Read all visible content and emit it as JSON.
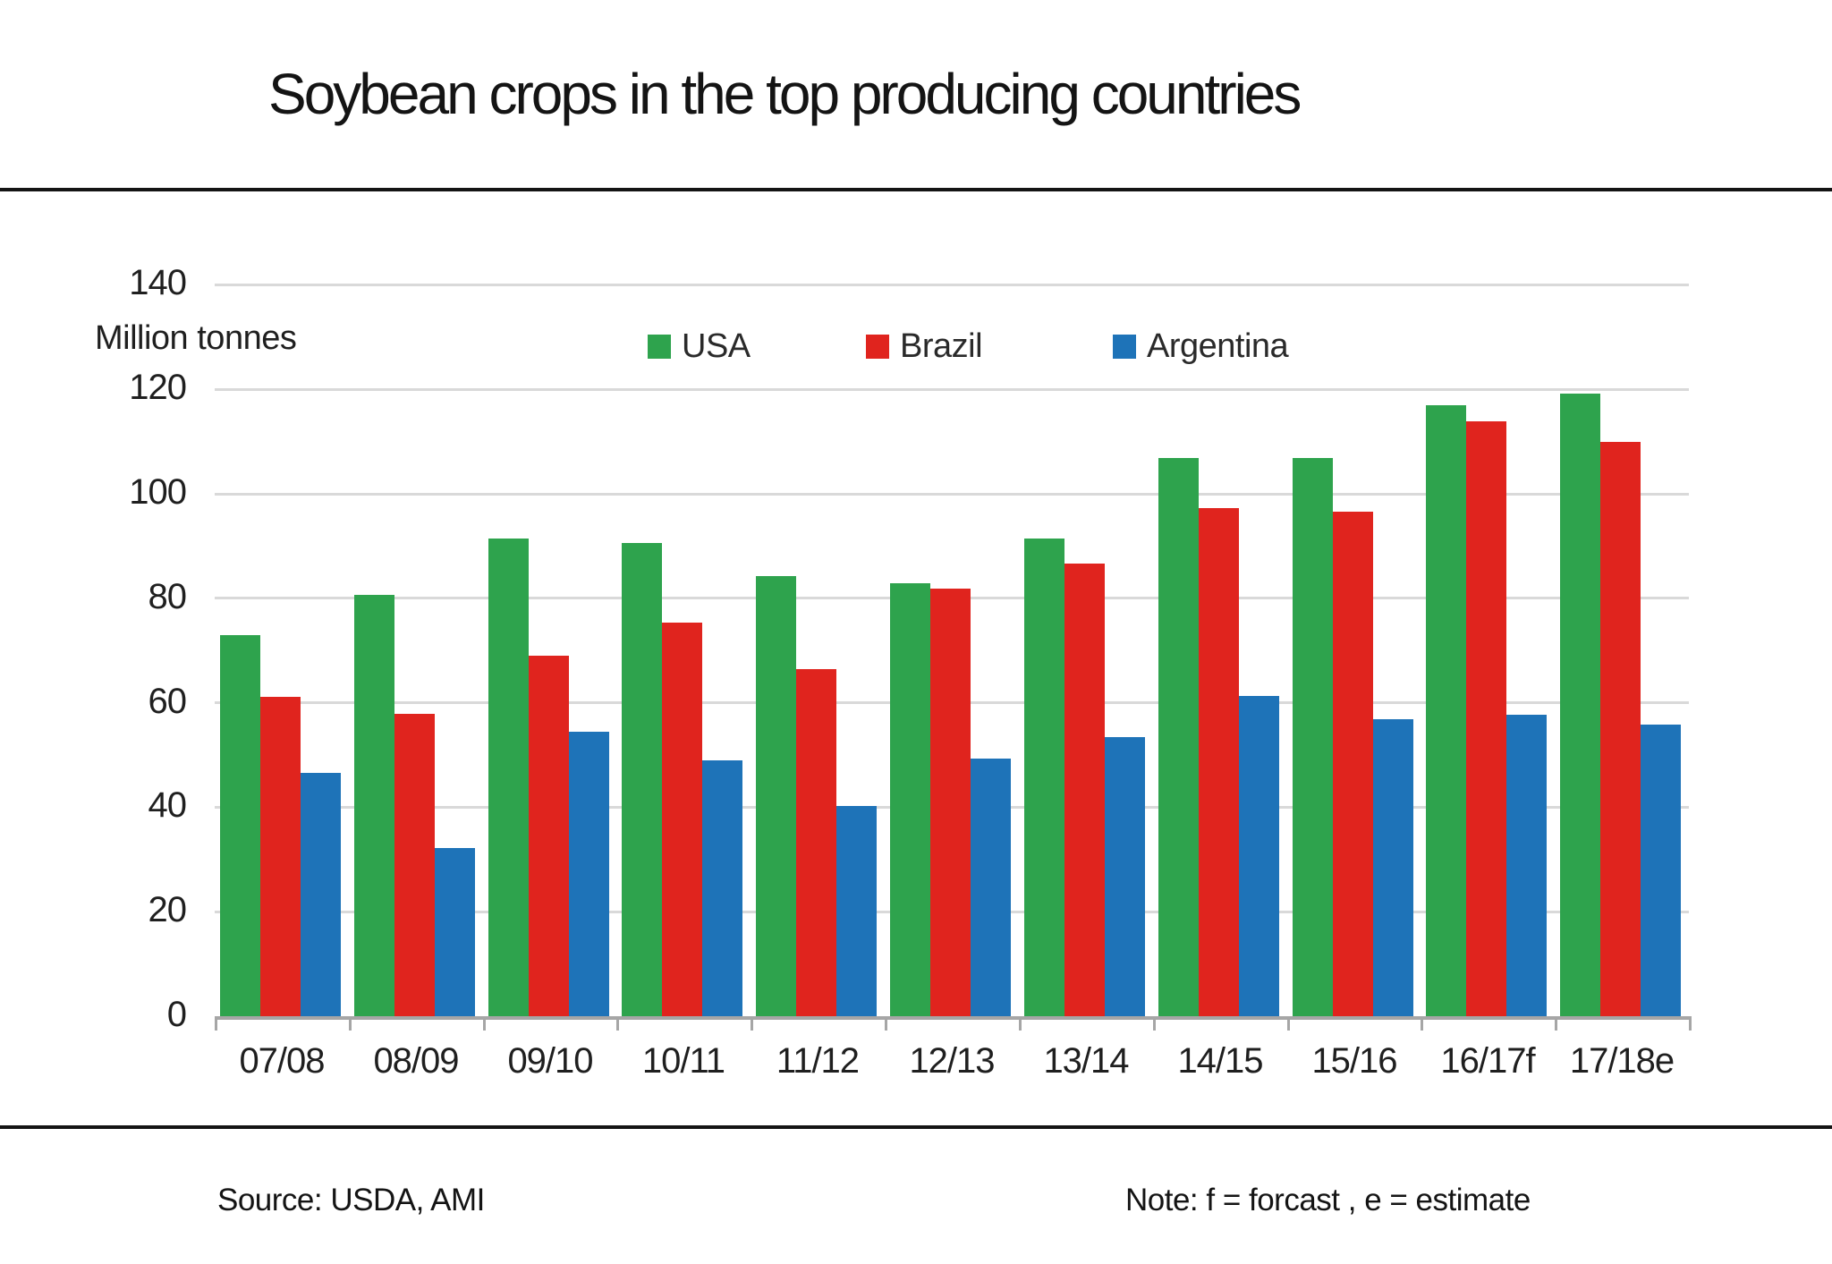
{
  "title": "Soybean crops in the top producing countries",
  "y_axis_label": "Million tonnes",
  "legend": {
    "items": [
      {
        "label": "USA",
        "color": "#2EA34D"
      },
      {
        "label": "Brazil",
        "color": "#E0241E"
      },
      {
        "label": "Argentina",
        "color": "#1E73B8"
      }
    ]
  },
  "chart_data": {
    "type": "bar",
    "title": "Soybean crops in the top producing countries",
    "ylabel": "Million tonnes",
    "categories": [
      "07/08",
      "08/09",
      "09/10",
      "10/11",
      "11/12",
      "12/13",
      "13/14",
      "14/15",
      "15/16",
      "16/17f",
      "17/18e"
    ],
    "series": [
      {
        "name": "USA",
        "color": "#2EA34D",
        "values": [
          73.0,
          80.7,
          91.4,
          90.6,
          84.3,
          82.8,
          91.4,
          106.9,
          106.9,
          116.9,
          119.2
        ]
      },
      {
        "name": "Brazil",
        "color": "#E0241E",
        "values": [
          61.2,
          57.8,
          69.0,
          75.3,
          66.5,
          81.8,
          86.7,
          97.2,
          96.5,
          113.9,
          110.0
        ]
      },
      {
        "name": "Argentina",
        "color": "#1E73B8",
        "values": [
          46.5,
          32.2,
          54.5,
          49.0,
          40.2,
          49.4,
          53.4,
          61.3,
          56.8,
          57.7,
          55.9
        ]
      }
    ],
    "ylim": [
      0,
      140
    ],
    "yticks": [
      0,
      20,
      40,
      60,
      80,
      100,
      120,
      140
    ],
    "grid": true,
    "legend_position": "top"
  },
  "footer": {
    "source": "Source: USDA, AMI",
    "note": "Note: f = forcast , e = estimate"
  }
}
